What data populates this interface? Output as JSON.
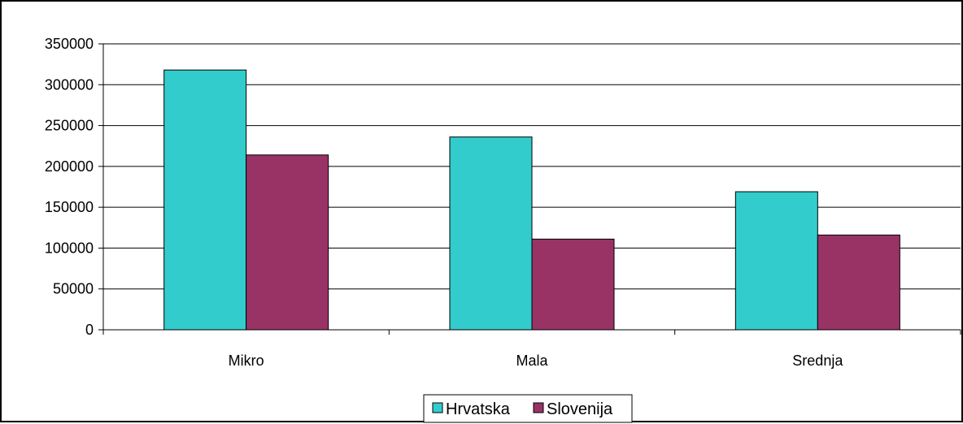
{
  "chart_data": {
    "type": "bar",
    "title": "",
    "xlabel": "",
    "ylabel": "",
    "categories": [
      "Mikro",
      "Mala",
      "Srednja"
    ],
    "series": [
      {
        "name": "Hrvatska",
        "values": [
          318000,
          236000,
          169000
        ],
        "color": "#33CCCC"
      },
      {
        "name": "Slovenija",
        "values": [
          214000,
          111000,
          116000
        ],
        "color": "#993366"
      }
    ],
    "ylim": [
      0,
      350000
    ],
    "yticks": [
      "0",
      "50000",
      "100000",
      "150000",
      "200000",
      "250000",
      "300000",
      "350000"
    ],
    "grid": true,
    "legend_position": "bottom"
  }
}
